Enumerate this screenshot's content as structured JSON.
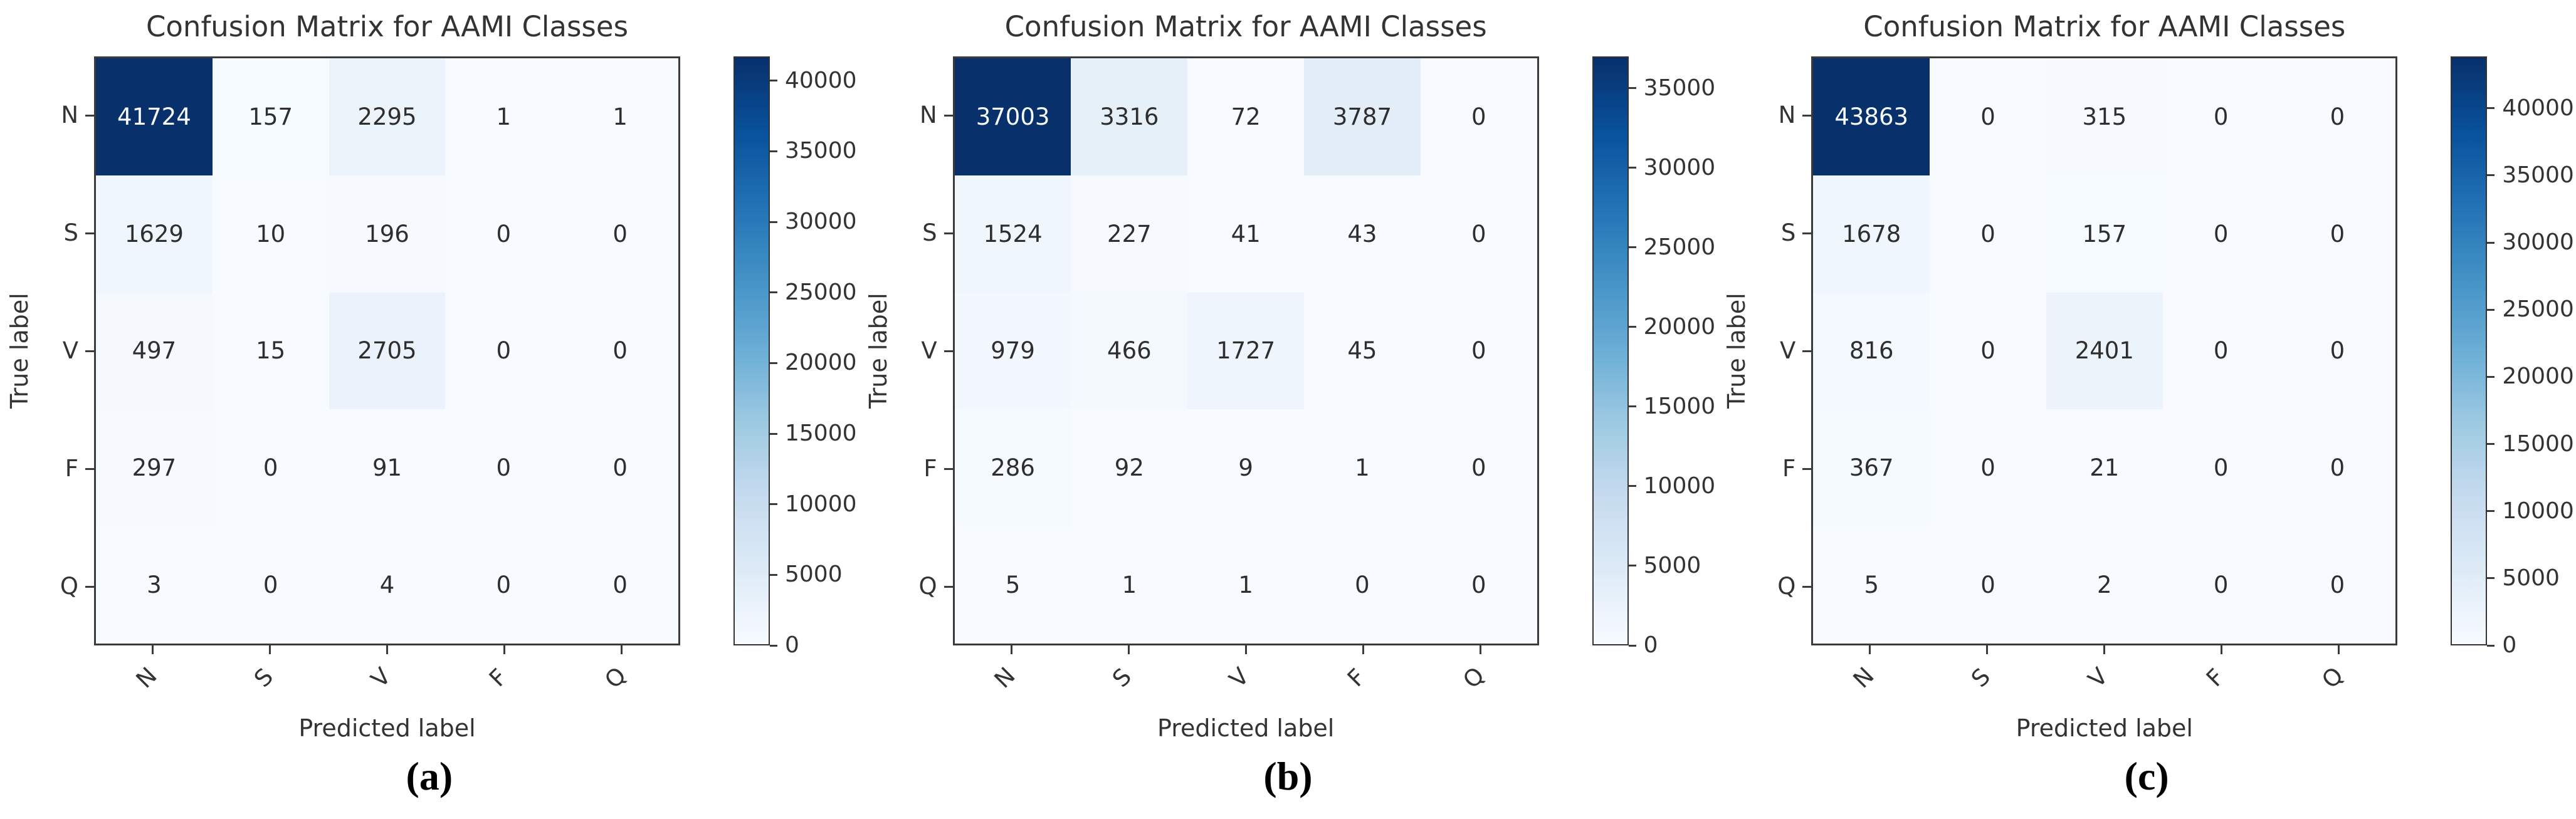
{
  "style": {
    "background": "#ffffff",
    "text_color": "#333333",
    "spine_color": "#3a3a3a",
    "cell_text_dark": "#2e2e2e",
    "cell_text_light": "#f7fbff",
    "colormap_name": "Blues",
    "blues_stops": [
      "#f7fbff",
      "#deebf7",
      "#c6dbef",
      "#9ecae1",
      "#6baed6",
      "#4292c6",
      "#2171b5",
      "#08519c",
      "#08306b"
    ]
  },
  "chart_data": [
    {
      "type": "heatmap",
      "title": "Confusion Matrix for AAMI Classes",
      "xlabel": "Predicted label",
      "ylabel": "True label",
      "caption": "(a)",
      "categories_x": [
        "N",
        "S",
        "V",
        "F",
        "Q"
      ],
      "categories_y": [
        "N",
        "S",
        "V",
        "F",
        "Q"
      ],
      "matrix": [
        [
          41724,
          157,
          2295,
          1,
          1
        ],
        [
          1629,
          10,
          196,
          0,
          0
        ],
        [
          497,
          15,
          2705,
          0,
          0
        ],
        [
          297,
          0,
          91,
          0,
          0
        ],
        [
          3,
          0,
          4,
          0,
          0
        ]
      ],
      "vmin": 0,
      "vmax": 41724,
      "colormap": "Blues",
      "colorbar_ticks": [
        0,
        5000,
        10000,
        15000,
        20000,
        25000,
        30000,
        35000,
        40000
      ],
      "x_tick_rotation_deg": 45,
      "grid": false,
      "legend": "colorbar-right"
    },
    {
      "type": "heatmap",
      "title": "Confusion Matrix for AAMI Classes",
      "xlabel": "Predicted label",
      "ylabel": "True label",
      "caption": "(b)",
      "categories_x": [
        "N",
        "S",
        "V",
        "F",
        "Q"
      ],
      "categories_y": [
        "N",
        "S",
        "V",
        "F",
        "Q"
      ],
      "matrix": [
        [
          37003,
          3316,
          72,
          3787,
          0
        ],
        [
          1524,
          227,
          41,
          43,
          0
        ],
        [
          979,
          466,
          1727,
          45,
          0
        ],
        [
          286,
          92,
          9,
          1,
          0
        ],
        [
          5,
          1,
          1,
          0,
          0
        ]
      ],
      "vmin": 0,
      "vmax": 37003,
      "colormap": "Blues",
      "colorbar_ticks": [
        0,
        5000,
        10000,
        15000,
        20000,
        25000,
        30000,
        35000
      ],
      "x_tick_rotation_deg": 45,
      "grid": false,
      "legend": "colorbar-right"
    },
    {
      "type": "heatmap",
      "title": "Confusion Matrix for AAMI Classes",
      "xlabel": "Predicted label",
      "ylabel": "True label",
      "caption": "(c)",
      "categories_x": [
        "N",
        "S",
        "V",
        "F",
        "Q"
      ],
      "categories_y": [
        "N",
        "S",
        "V",
        "F",
        "Q"
      ],
      "matrix": [
        [
          43863,
          0,
          315,
          0,
          0
        ],
        [
          1678,
          0,
          157,
          0,
          0
        ],
        [
          816,
          0,
          2401,
          0,
          0
        ],
        [
          367,
          0,
          21,
          0,
          0
        ],
        [
          5,
          0,
          2,
          0,
          0
        ]
      ],
      "vmin": 0,
      "vmax": 43863,
      "colormap": "Blues",
      "colorbar_ticks": [
        0,
        5000,
        10000,
        15000,
        20000,
        25000,
        30000,
        35000,
        40000
      ],
      "x_tick_rotation_deg": 45,
      "grid": false,
      "legend": "colorbar-right"
    }
  ]
}
